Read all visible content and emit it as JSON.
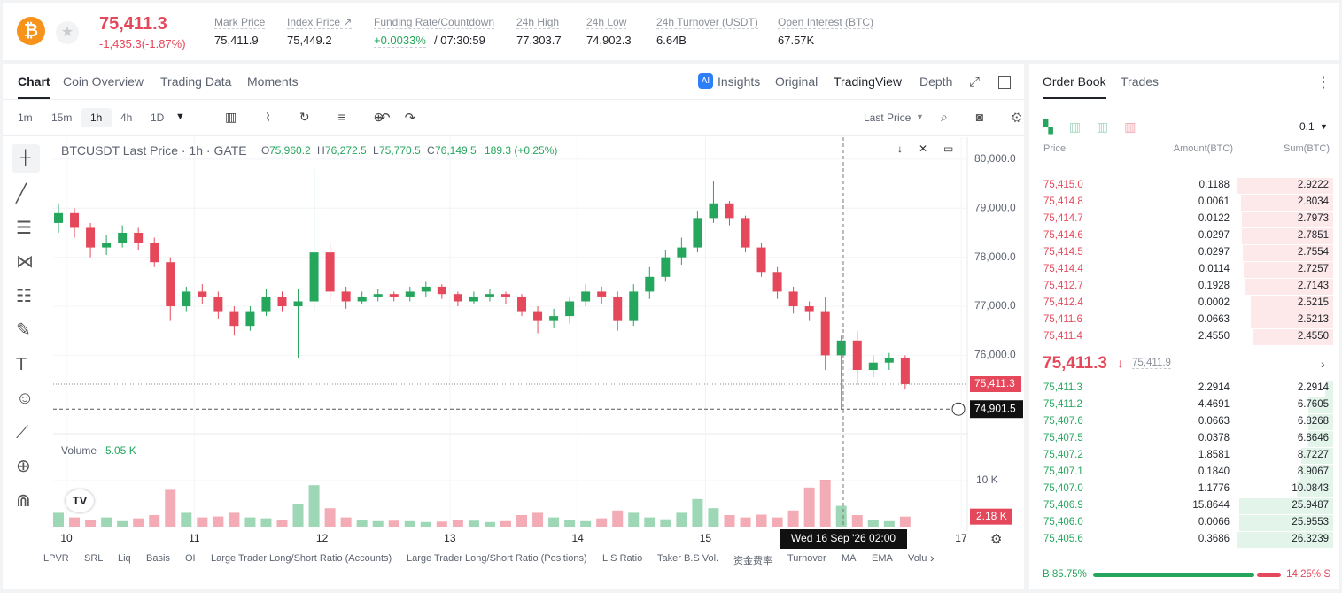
{
  "header": {
    "price": "75,411.3",
    "change": "-1,435.3(-1.87%)",
    "stats": [
      {
        "label": "Mark Price",
        "value": "75,411.9"
      },
      {
        "label": "Index Price ↗",
        "value": "75,449.2"
      },
      {
        "label": "Funding Rate/Countdown",
        "value": "+0.0033%",
        "extra": "/ 07:30:59"
      },
      {
        "label": "24h High",
        "value": "77,303.7"
      },
      {
        "label": "24h Low",
        "value": "74,902.3"
      },
      {
        "label": "24h Turnover (USDT)",
        "value": "6.64B"
      },
      {
        "label": "Open Interest (BTC)",
        "value": "67.57K"
      }
    ]
  },
  "chart_tabs": [
    "Chart",
    "Coin Overview",
    "Trading Data",
    "Moments"
  ],
  "view_tabs": [
    "Insights",
    "Original",
    "TradingView",
    "Depth"
  ],
  "intervals": [
    "1m",
    "15m",
    "1h",
    "4h",
    "1D"
  ],
  "price_type": "Last Price",
  "indicators": [
    "LPVR",
    "SRL",
    "Liq",
    "Basis",
    "OI",
    "Large Trader Long/Short Ratio (Accounts)",
    "Large Trader Long/Short Ratio (Positions)",
    "L.S Ratio",
    "Taker B.S Vol.",
    "资金费率",
    "Turnover",
    "MA",
    "EMA",
    "Volu"
  ],
  "chart_data": {
    "type": "candlestick",
    "title": "BTCUSDT Last Price · 1h · GATE",
    "legend": [
      {
        "key": "O",
        "value": "75,960.2"
      },
      {
        "key": "H",
        "value": "76,272.5"
      },
      {
        "key": "L",
        "value": "75,770.5"
      },
      {
        "key": "C",
        "value": "76,149.5"
      }
    ],
    "legend_change": "189.3 (+0.25%)",
    "up_color": "#25a65d",
    "down_color": "#e5485a",
    "open": [
      78700,
      78900,
      78600,
      78200,
      78300,
      78500,
      78300,
      77900,
      77000,
      77300,
      77200,
      76900,
      76600,
      76900,
      77200,
      77000,
      77100,
      78100,
      77300,
      77100,
      77200,
      77250,
      77200,
      77300,
      77400,
      77250,
      77100,
      77200,
      77250,
      77200,
      76900,
      76700,
      76800,
      77100,
      77300,
      77200,
      76700,
      77300,
      77600,
      78000,
      78200,
      78800,
      79100,
      78800,
      78200,
      77700,
      77300,
      77000,
      76900,
      76000,
      76300,
      75700,
      75850,
      75950
    ],
    "high": [
      79100,
      79000,
      78700,
      78450,
      78650,
      78600,
      78400,
      78000,
      77400,
      77450,
      77300,
      77000,
      77000,
      77350,
      77300,
      77350,
      79800,
      78300,
      77400,
      77300,
      77350,
      77300,
      77400,
      77500,
      77450,
      77300,
      77300,
      77350,
      77300,
      77250,
      77000,
      76950,
      77200,
      77450,
      77400,
      77300,
      77450,
      77800,
      78150,
      78400,
      78950,
      79550,
      79150,
      78850,
      78300,
      77800,
      77400,
      77100,
      77200,
      76400,
      76500,
      76000,
      76050,
      76000
    ],
    "low": [
      78500,
      78400,
      78000,
      78050,
      78200,
      78150,
      77800,
      76700,
      76900,
      77050,
      76750,
      76400,
      76500,
      76800,
      76900,
      75950,
      76900,
      77100,
      76950,
      77050,
      77100,
      77100,
      77100,
      77200,
      77150,
      77000,
      77050,
      77100,
      77050,
      76800,
      76450,
      76550,
      76650,
      77000,
      77050,
      76500,
      76600,
      77150,
      77500,
      77850,
      78100,
      78700,
      78650,
      78100,
      77600,
      77150,
      76850,
      76700,
      75700,
      74901.5,
      75400,
      75550,
      75700,
      75300
    ],
    "close": [
      78900,
      78600,
      78200,
      78300,
      78500,
      78300,
      77900,
      77000,
      77300,
      77200,
      76900,
      76600,
      76900,
      77200,
      77000,
      77100,
      78100,
      77300,
      77100,
      77200,
      77250,
      77200,
      77300,
      77400,
      77250,
      77100,
      77200,
      77250,
      77200,
      76900,
      76700,
      76800,
      77100,
      77300,
      77200,
      76700,
      77300,
      77600,
      78000,
      78200,
      78800,
      79100,
      78800,
      78200,
      77700,
      77300,
      77000,
      76900,
      76000,
      76300,
      75700,
      75850,
      75950,
      75411.3
    ],
    "volume": [
      3,
      2,
      1.5,
      2,
      1.2,
      1.8,
      2.5,
      8,
      3,
      2,
      2.2,
      3,
      2,
      1.8,
      1.5,
      5,
      9,
      4,
      2,
      1.5,
      1.2,
      1.3,
      1.2,
      1,
      1.1,
      1.4,
      1.3,
      1,
      1.2,
      2.5,
      3,
      2,
      1.5,
      1.2,
      1.8,
      3.5,
      3,
      2,
      1.6,
      3,
      6,
      4,
      2.5,
      2,
      2.6,
      2,
      3.5,
      8.5,
      10.2,
      4.5,
      2.5,
      1.5,
      1.2,
      2.18
    ],
    "xlim": [
      -0.333,
      56.889
    ],
    "xticks": [
      {
        "value": 0.5,
        "label": "10"
      },
      {
        "value": 8.5,
        "label": "11"
      },
      {
        "value": 16.5,
        "label": "12"
      },
      {
        "value": 24.5,
        "label": "13"
      },
      {
        "value": 32.5,
        "label": "14"
      },
      {
        "value": 40.5,
        "label": "15"
      },
      {
        "value": 56.5,
        "label": "17"
      }
    ],
    "ylim": [
      74400,
      80450
    ],
    "yticks": [
      {
        "value": 80000,
        "label": "80,000.0"
      },
      {
        "value": 79000,
        "label": "79,000.0"
      },
      {
        "value": 78000,
        "label": "78,000.0"
      },
      {
        "value": 77000,
        "label": "77,000.0"
      },
      {
        "value": 76000,
        "label": "76,000.0"
      }
    ],
    "price_line": {
      "value": 75411.3,
      "label": "75,411.3"
    },
    "low_line": {
      "value": 74901.5,
      "label": "74,901.5"
    },
    "volume_title": "Volume",
    "volume_value": "5.05 K",
    "volume_tag": "2.18 K",
    "vlim": [
      0,
      20
    ],
    "vticks": [
      {
        "value": 10,
        "label": "10 K"
      }
    ],
    "crosshair": "Wed 16 Sep '26   02:00",
    "grid": true
  },
  "order_book": {
    "tabs": [
      "Order Book",
      "Trades"
    ],
    "precision": "0.1",
    "headers": [
      "Price",
      "Amount(BTC)",
      "Sum(BTC)"
    ],
    "asks": [
      [
        "75,415.0",
        "0.1188",
        "2.9222"
      ],
      [
        "75,414.8",
        "0.0061",
        "2.8034"
      ],
      [
        "75,414.7",
        "0.0122",
        "2.7973"
      ],
      [
        "75,414.6",
        "0.0297",
        "2.7851"
      ],
      [
        "75,414.5",
        "0.0297",
        "2.7554"
      ],
      [
        "75,414.4",
        "0.0114",
        "2.7257"
      ],
      [
        "75,412.7",
        "0.1928",
        "2.7143"
      ],
      [
        "75,412.4",
        "0.0002",
        "2.5215"
      ],
      [
        "75,411.6",
        "0.0663",
        "2.5213"
      ],
      [
        "75,411.4",
        "2.4550",
        "2.4550"
      ]
    ],
    "last": "75,411.3",
    "mark": "75,411.9",
    "bids": [
      [
        "75,411.3",
        "2.2914",
        "2.2914"
      ],
      [
        "75,411.2",
        "4.4691",
        "6.7605"
      ],
      [
        "75,407.6",
        "0.0663",
        "6.8268"
      ],
      [
        "75,407.5",
        "0.0378",
        "6.8646"
      ],
      [
        "75,407.2",
        "1.8581",
        "8.7227"
      ],
      [
        "75,407.1",
        "0.1840",
        "8.9067"
      ],
      [
        "75,407.0",
        "1.1776",
        "10.0843"
      ],
      [
        "75,406.9",
        "15.8644",
        "25.9487"
      ],
      [
        "75,406.0",
        "0.0066",
        "25.9553"
      ],
      [
        "75,405.6",
        "0.3686",
        "26.3239"
      ]
    ],
    "buy_ratio": "B 85.75%",
    "sell_ratio": "14.25% S"
  }
}
